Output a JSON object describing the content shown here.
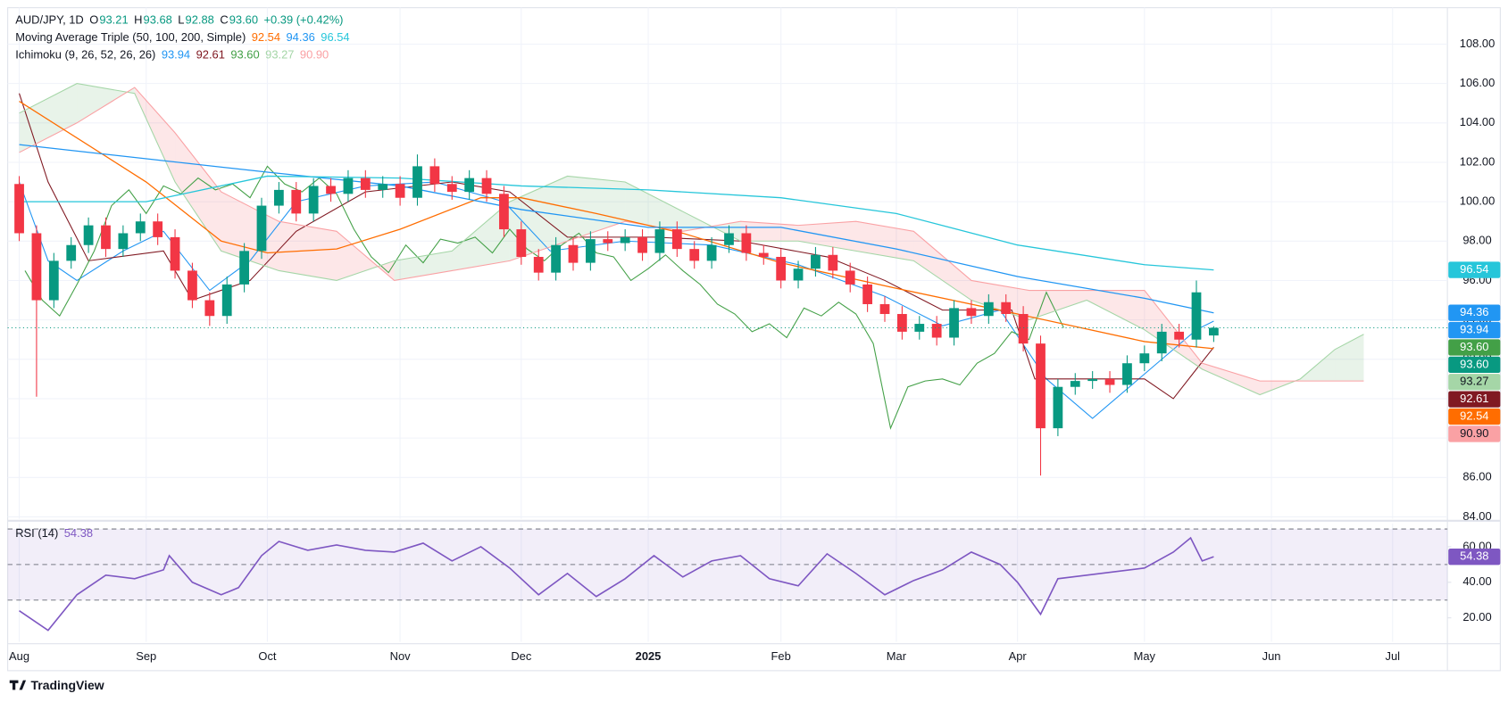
{
  "chart_data": [
    {
      "type": "candlestick",
      "legend": {
        "symbol": "AUD/JPY, 1D",
        "fields": [
          {
            "label": "O",
            "value": "93.21"
          },
          {
            "label": "H",
            "value": "93.68"
          },
          {
            "label": "L",
            "value": "92.88"
          },
          {
            "label": "C",
            "value": "93.60"
          }
        ],
        "change": "+0.39 (+0.42%)"
      },
      "xlim": [
        -2,
        247.5
      ],
      "ylim": [
        83.9,
        109.85
      ],
      "yticks": [
        {
          "value": 84,
          "label": "84.00"
        },
        {
          "value": 86,
          "label": "86.00"
        },
        {
          "value": 88,
          "label": "88.00"
        },
        {
          "value": 90,
          "label": "90.00"
        },
        {
          "value": 92,
          "label": "92.00"
        },
        {
          "value": 94,
          "label": "94.00"
        },
        {
          "value": 96,
          "label": "96.00"
        },
        {
          "value": 98,
          "label": "98.00"
        },
        {
          "value": 100,
          "label": "100.00"
        },
        {
          "value": 102,
          "label": "102.00"
        },
        {
          "value": 104,
          "label": "104.00"
        },
        {
          "value": 106,
          "label": "106.00"
        },
        {
          "value": 108,
          "label": "108.00"
        }
      ],
      "grid": true,
      "up_color": "#089981",
      "down_color": "#f23645",
      "x": [
        0,
        3,
        6,
        9,
        12,
        15,
        18,
        21,
        24,
        27,
        30,
        33,
        36,
        39,
        42,
        45,
        48,
        51,
        54,
        57,
        60,
        63,
        66,
        69,
        72,
        75,
        78,
        81,
        84,
        87,
        90,
        93,
        96,
        99,
        102,
        105,
        108,
        111,
        114,
        117,
        120,
        123,
        126,
        129,
        132,
        135,
        138,
        141,
        144,
        147,
        150,
        153,
        156,
        159,
        162,
        165,
        168,
        171,
        174,
        177,
        180,
        183,
        186,
        189,
        192,
        195,
        198,
        201,
        204,
        207
      ],
      "open": [
        100.9,
        98.4,
        95.0,
        97.0,
        97.8,
        98.8,
        97.6,
        98.4,
        99.0,
        98.2,
        96.5,
        95.0,
        94.2,
        95.8,
        97.5,
        99.8,
        100.6,
        99.4,
        100.8,
        100.4,
        101.2,
        100.6,
        100.9,
        100.2,
        101.8,
        100.9,
        100.5,
        101.2,
        100.4,
        98.6,
        97.2,
        96.4,
        97.8,
        96.9,
        98.1,
        97.9,
        98.2,
        97.4,
        98.6,
        97.6,
        97.0,
        97.8,
        98.4,
        97.4,
        97.2,
        96.0,
        96.6,
        97.3,
        96.5,
        95.8,
        94.8,
        94.3,
        93.4,
        93.8,
        93.1,
        94.6,
        94.2,
        94.9,
        94.3,
        92.8,
        88.5,
        90.6,
        90.9,
        91.0,
        90.7,
        91.8,
        92.3,
        93.4,
        93.0,
        93.21
      ],
      "high": [
        101.3,
        98.8,
        97.4,
        98.2,
        99.2,
        99.2,
        98.8,
        99.4,
        99.4,
        98.6,
        96.9,
        95.4,
        96.2,
        97.9,
        100.2,
        101.0,
        101.0,
        101.2,
        101.2,
        101.6,
        101.6,
        101.3,
        101.3,
        102.4,
        102.2,
        101.3,
        101.6,
        101.6,
        100.8,
        99.0,
        97.6,
        98.2,
        98.2,
        98.5,
        98.5,
        98.6,
        98.6,
        99.0,
        99.0,
        98.0,
        98.2,
        98.8,
        98.8,
        97.8,
        97.6,
        97.0,
        97.7,
        97.7,
        96.9,
        96.2,
        95.2,
        94.7,
        94.2,
        94.2,
        95.0,
        95.0,
        95.3,
        95.3,
        94.7,
        93.2,
        91.0,
        91.3,
        91.4,
        91.4,
        92.2,
        92.7,
        93.8,
        93.8,
        96.0,
        93.68
      ],
      "low": [
        98.0,
        90.1,
        94.6,
        96.6,
        97.4,
        97.2,
        97.2,
        98.0,
        97.8,
        96.1,
        94.6,
        93.7,
        93.8,
        95.4,
        97.1,
        99.4,
        99.0,
        99.0,
        100.0,
        100.0,
        100.2,
        100.2,
        99.8,
        99.8,
        100.5,
        100.1,
        100.1,
        100.0,
        98.2,
        96.8,
        96.0,
        96.0,
        96.5,
        96.5,
        97.5,
        97.5,
        97.0,
        97.0,
        97.2,
        96.6,
        96.6,
        97.4,
        97.0,
        96.8,
        95.6,
        95.6,
        96.2,
        96.1,
        95.4,
        94.4,
        93.9,
        93.0,
        93.0,
        92.7,
        92.7,
        93.8,
        93.8,
        93.9,
        92.4,
        86.1,
        88.1,
        90.2,
        90.5,
        90.3,
        90.3,
        91.4,
        91.9,
        92.6,
        92.6,
        92.88
      ],
      "close": [
        98.4,
        95.0,
        97.0,
        97.8,
        98.8,
        97.6,
        98.4,
        99.0,
        98.2,
        96.5,
        95.0,
        94.2,
        95.8,
        97.5,
        99.8,
        100.6,
        99.4,
        100.8,
        100.4,
        101.2,
        100.6,
        100.9,
        100.2,
        101.8,
        100.9,
        100.5,
        101.2,
        100.4,
        98.6,
        97.2,
        96.4,
        97.8,
        96.9,
        98.1,
        97.9,
        98.2,
        97.4,
        98.6,
        97.6,
        97.0,
        97.8,
        98.4,
        97.4,
        97.2,
        96.0,
        96.6,
        97.3,
        96.5,
        95.8,
        94.8,
        94.3,
        93.4,
        93.8,
        93.1,
        94.6,
        94.2,
        94.9,
        94.3,
        92.8,
        88.5,
        90.6,
        90.9,
        91.0,
        90.7,
        91.8,
        92.3,
        93.4,
        93.0,
        95.4,
        93.6
      ],
      "ma": {
        "label": "Moving Average Triple (50, 100, 200, Simple)",
        "series": [
          {
            "color": "#ff6d00",
            "last_label": "92.54",
            "x": [
              0,
              22,
              35,
              43,
              55,
              66,
              80,
              87,
              100,
              115,
              132,
              152,
              173,
              195,
              207
            ],
            "values": [
              105.1,
              101.0,
              98.0,
              97.4,
              97.6,
              98.6,
              100.2,
              100.2,
              99.4,
              98.4,
              96.9,
              95.6,
              94.3,
              92.9,
              92.54
            ]
          },
          {
            "color": "#2196f3",
            "last_label": "94.36",
            "x": [
              0,
              43,
              66,
              87,
              109,
              132,
              152,
              173,
              195,
              207
            ],
            "values": [
              102.9,
              101.5,
              100.8,
              99.6,
              98.7,
              98.7,
              97.6,
              96.2,
              95.1,
              94.36
            ]
          },
          {
            "color": "#26c6da",
            "last_label": "96.54",
            "x": [
              0,
              22,
              43,
              66,
              87,
              109,
              132,
              152,
              173,
              195,
              207
            ],
            "values": [
              100.0,
              100.0,
              101.3,
              101.2,
              100.8,
              100.6,
              100.2,
              99.4,
              97.8,
              96.8,
              96.54
            ]
          }
        ]
      },
      "ichimoku": {
        "label": "Ichimoku (9, 26, 52, 26, 26)",
        "cloud_up_color": "rgba(67,160,71,0.12)",
        "cloud_down_color": "rgba(242,54,69,0.12)",
        "lines": [
          {
            "color": "#2196f3",
            "last_label": "93.94",
            "x": [
              0,
              5,
              10,
              18,
              25,
              33,
              40,
              48,
              60,
              72,
              84,
              92,
              105,
              120,
              135,
              150,
              160,
              170,
              178,
              186,
              192,
              198,
              204,
              207
            ],
            "values": [
              101,
              97,
              96,
              97.5,
              98.5,
              95.5,
              97,
              100,
              100.8,
              101,
              100,
              97.5,
              98,
              97.8,
              96.8,
              95.2,
              93.7,
              94.5,
              91,
              89,
              90.5,
              92,
              93.5,
              93.94
            ]
          },
          {
            "color": "#801922",
            "last_label": "92.61",
            "x": [
              0,
              5,
              12,
              25,
              30,
              40,
              48,
              60,
              75,
              85,
              95,
              110,
              125,
              140,
              150,
              160,
              172,
              176,
              195,
              200,
              204,
              207
            ],
            "values": [
              105.5,
              101,
              97,
              97.5,
              95,
              96,
              98.5,
              100.5,
              101,
              100.5,
              98.2,
              98.2,
              98,
              97.2,
              96,
              94.5,
              94.5,
              91,
              91,
              90,
              91.5,
              92.61
            ]
          },
          {
            "color": "#43a047",
            "last_label": "93.60",
            "x": [
              1,
              4,
              7,
              10,
              13,
              16,
              19,
              22,
              25,
              28,
              31,
              34,
              37,
              40,
              43,
              46,
              49,
              52,
              55,
              58,
              61,
              64,
              67,
              70,
              73,
              76,
              79,
              82,
              85,
              88,
              91,
              94,
              97,
              100,
              103,
              106,
              109,
              112,
              115,
              118,
              121,
              124,
              127,
              130,
              133,
              136,
              139,
              142,
              145,
              148,
              151,
              154,
              157,
              160,
              163,
              166,
              169,
              172,
              175,
              178,
              181
            ],
            "values": [
              96.5,
              95.0,
              94.2,
              95.8,
              97.5,
              99.8,
              100.6,
              99.4,
              100.8,
              100.4,
              101.2,
              100.6,
              100.9,
              100.2,
              101.8,
              100.9,
              100.5,
              101.2,
              100.4,
              98.6,
              97.2,
              96.4,
              97.8,
              96.9,
              98.1,
              97.9,
              98.2,
              97.4,
              98.6,
              97.6,
              97.0,
              97.8,
              98.4,
              97.4,
              97.2,
              96.0,
              96.6,
              97.3,
              96.5,
              95.8,
              94.8,
              94.3,
              93.4,
              93.8,
              93.1,
              94.6,
              94.2,
              94.9,
              94.3,
              92.8,
              88.5,
              90.6,
              90.9,
              91.0,
              90.7,
              91.8,
              92.3,
              93.4,
              93.0,
              95.4,
              93.6
            ]
          },
          {
            "color": "#a5d6a7",
            "last_label": "93.27",
            "x": [
              0,
              10,
              20,
              27,
              35,
              45,
              55,
              65,
              75,
              85,
              95,
              105,
              115,
              125,
              135,
              145,
              155,
              165,
              175,
              185,
              195,
              205,
              215,
              222,
              228,
              233
            ],
            "values": [
              104.5,
              106.0,
              105.5,
              101.0,
              97.5,
              96.5,
              96.0,
              97.0,
              97.5,
              100.0,
              101.3,
              101.0,
              99.5,
              98.0,
              98.0,
              97.5,
              97.0,
              95.0,
              94.0,
              95.0,
              93.5,
              91.5,
              90.2,
              91.0,
              92.5,
              93.27
            ]
          },
          {
            "color": "#faa1a4",
            "last_label": "90.90",
            "x": [
              0,
              10,
              20,
              27,
              35,
              45,
              55,
              65,
              75,
              85,
              95,
              105,
              115,
              125,
              135,
              145,
              155,
              165,
              175,
              185,
              195,
              205,
              215,
              222,
              228,
              233
            ],
            "values": [
              102.5,
              104.0,
              105.8,
              103.5,
              100.5,
              99.0,
              98.5,
              96.0,
              96.5,
              97.0,
              98.0,
              99.0,
              98.5,
              99.0,
              98.8,
              99.0,
              98.5,
              96.0,
              95.5,
              95.5,
              95.5,
              91.8,
              90.9,
              90.9,
              90.9,
              90.9
            ]
          }
        ]
      }
    },
    {
      "type": "line",
      "label": "RSI (14)",
      "value_label": "54.38",
      "color": "#7e57c2",
      "xlim": [
        -2,
        247.5
      ],
      "ylim": [
        6.5,
        73.0
      ],
      "yticks": [
        {
          "value": 20,
          "label": "20.00"
        },
        {
          "value": 40,
          "label": "40.00"
        },
        {
          "value": 60,
          "label": "60.00"
        }
      ],
      "levels": [
        30,
        50,
        70
      ],
      "grid": true,
      "xticks": [
        {
          "value": 0,
          "label": "Aug"
        },
        {
          "value": 22,
          "label": "Sep"
        },
        {
          "value": 43,
          "label": "Oct"
        },
        {
          "value": 66,
          "label": "Nov"
        },
        {
          "value": 87,
          "label": "Dec"
        },
        {
          "value": 109,
          "label": "2025"
        },
        {
          "value": 132,
          "label": "Feb"
        },
        {
          "value": 152,
          "label": "Mar"
        },
        {
          "value": 173,
          "label": "Apr"
        },
        {
          "value": 195,
          "label": "May"
        },
        {
          "value": 217,
          "label": "Jun"
        },
        {
          "value": 238,
          "label": "Jul"
        }
      ],
      "x": [
        0,
        5,
        10,
        15,
        20,
        25,
        26,
        30,
        35,
        38,
        42,
        45,
        50,
        55,
        60,
        65,
        70,
        75,
        80,
        85,
        90,
        95,
        100,
        105,
        110,
        115,
        120,
        125,
        130,
        135,
        140,
        145,
        150,
        155,
        160,
        165,
        170,
        173,
        177,
        180,
        185,
        190,
        195,
        200,
        203,
        205,
        207
      ],
      "values": [
        24,
        13,
        33,
        44,
        42,
        47,
        55,
        40,
        33,
        37,
        55,
        63,
        58,
        61,
        58,
        57,
        62,
        52,
        60,
        48,
        33,
        45,
        32,
        42,
        55,
        43,
        52,
        55,
        42,
        38,
        56,
        45,
        33,
        41,
        47,
        57,
        50,
        40,
        22,
        42,
        44,
        46,
        48,
        57,
        65,
        52,
        54.38
      ]
    }
  ],
  "footer": {
    "brand": "TradingView"
  }
}
